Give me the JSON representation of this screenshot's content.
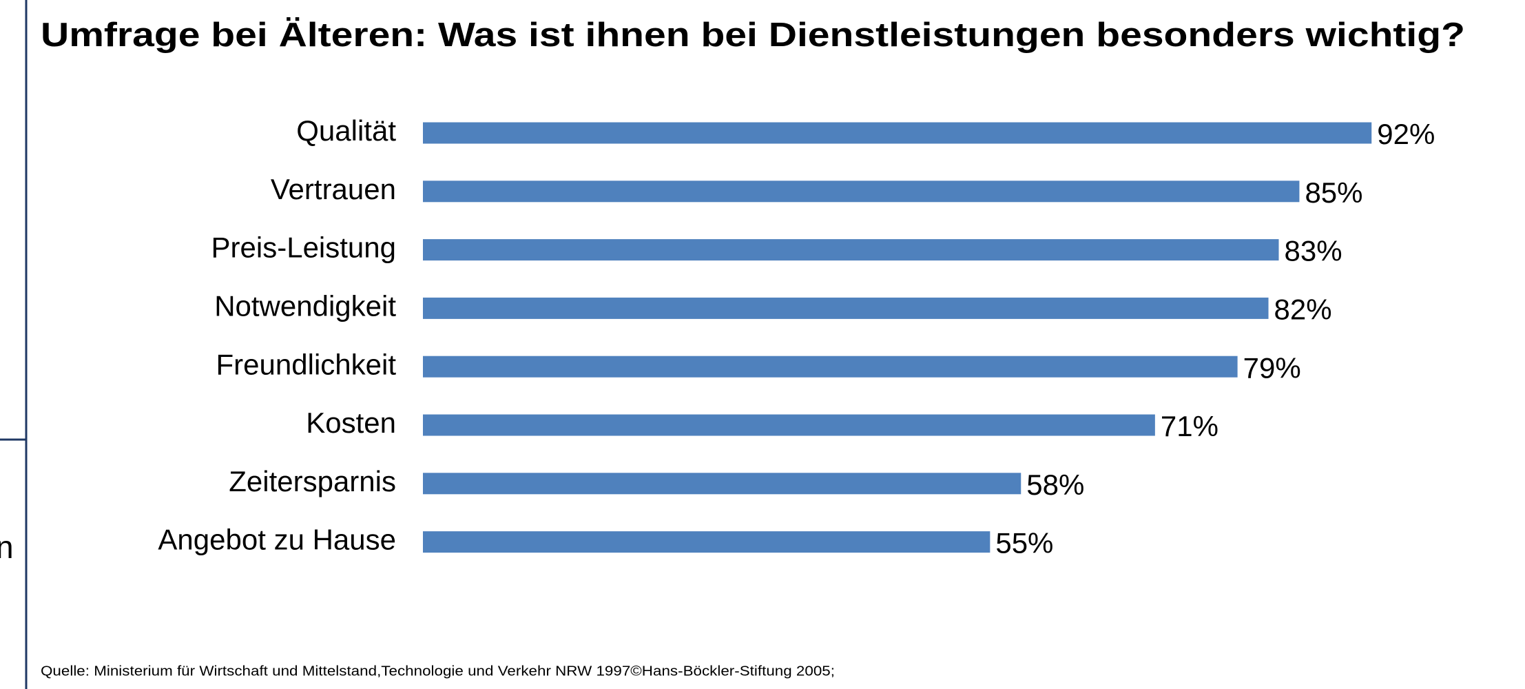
{
  "chart_data": {
    "type": "barh",
    "title": "Umfrage bei Älteren:  Was ist ihnen bei Dienstleistungen besonders wichtig?",
    "categories": [
      "Qualität",
      "Vertrauen",
      "Preis-Leistung",
      "Notwendigkeit",
      "Freundlichkeit",
      "Kosten",
      "Zeitersparnis",
      "Angebot zu Hause"
    ],
    "values": [
      92,
      85,
      83,
      82,
      79,
      71,
      58,
      55
    ],
    "value_labels": [
      "92%",
      "85%",
      "83%",
      "82%",
      "79%",
      "71%",
      "58%",
      "55%"
    ],
    "color": "#4f81bd",
    "source": "Quelle:  Ministerium für Wirtschaft und Mittelstand,Technologie und Verkehr NRW 1997©Hans-Böckler-Stiftung 2005;"
  },
  "side_fragment": "n"
}
